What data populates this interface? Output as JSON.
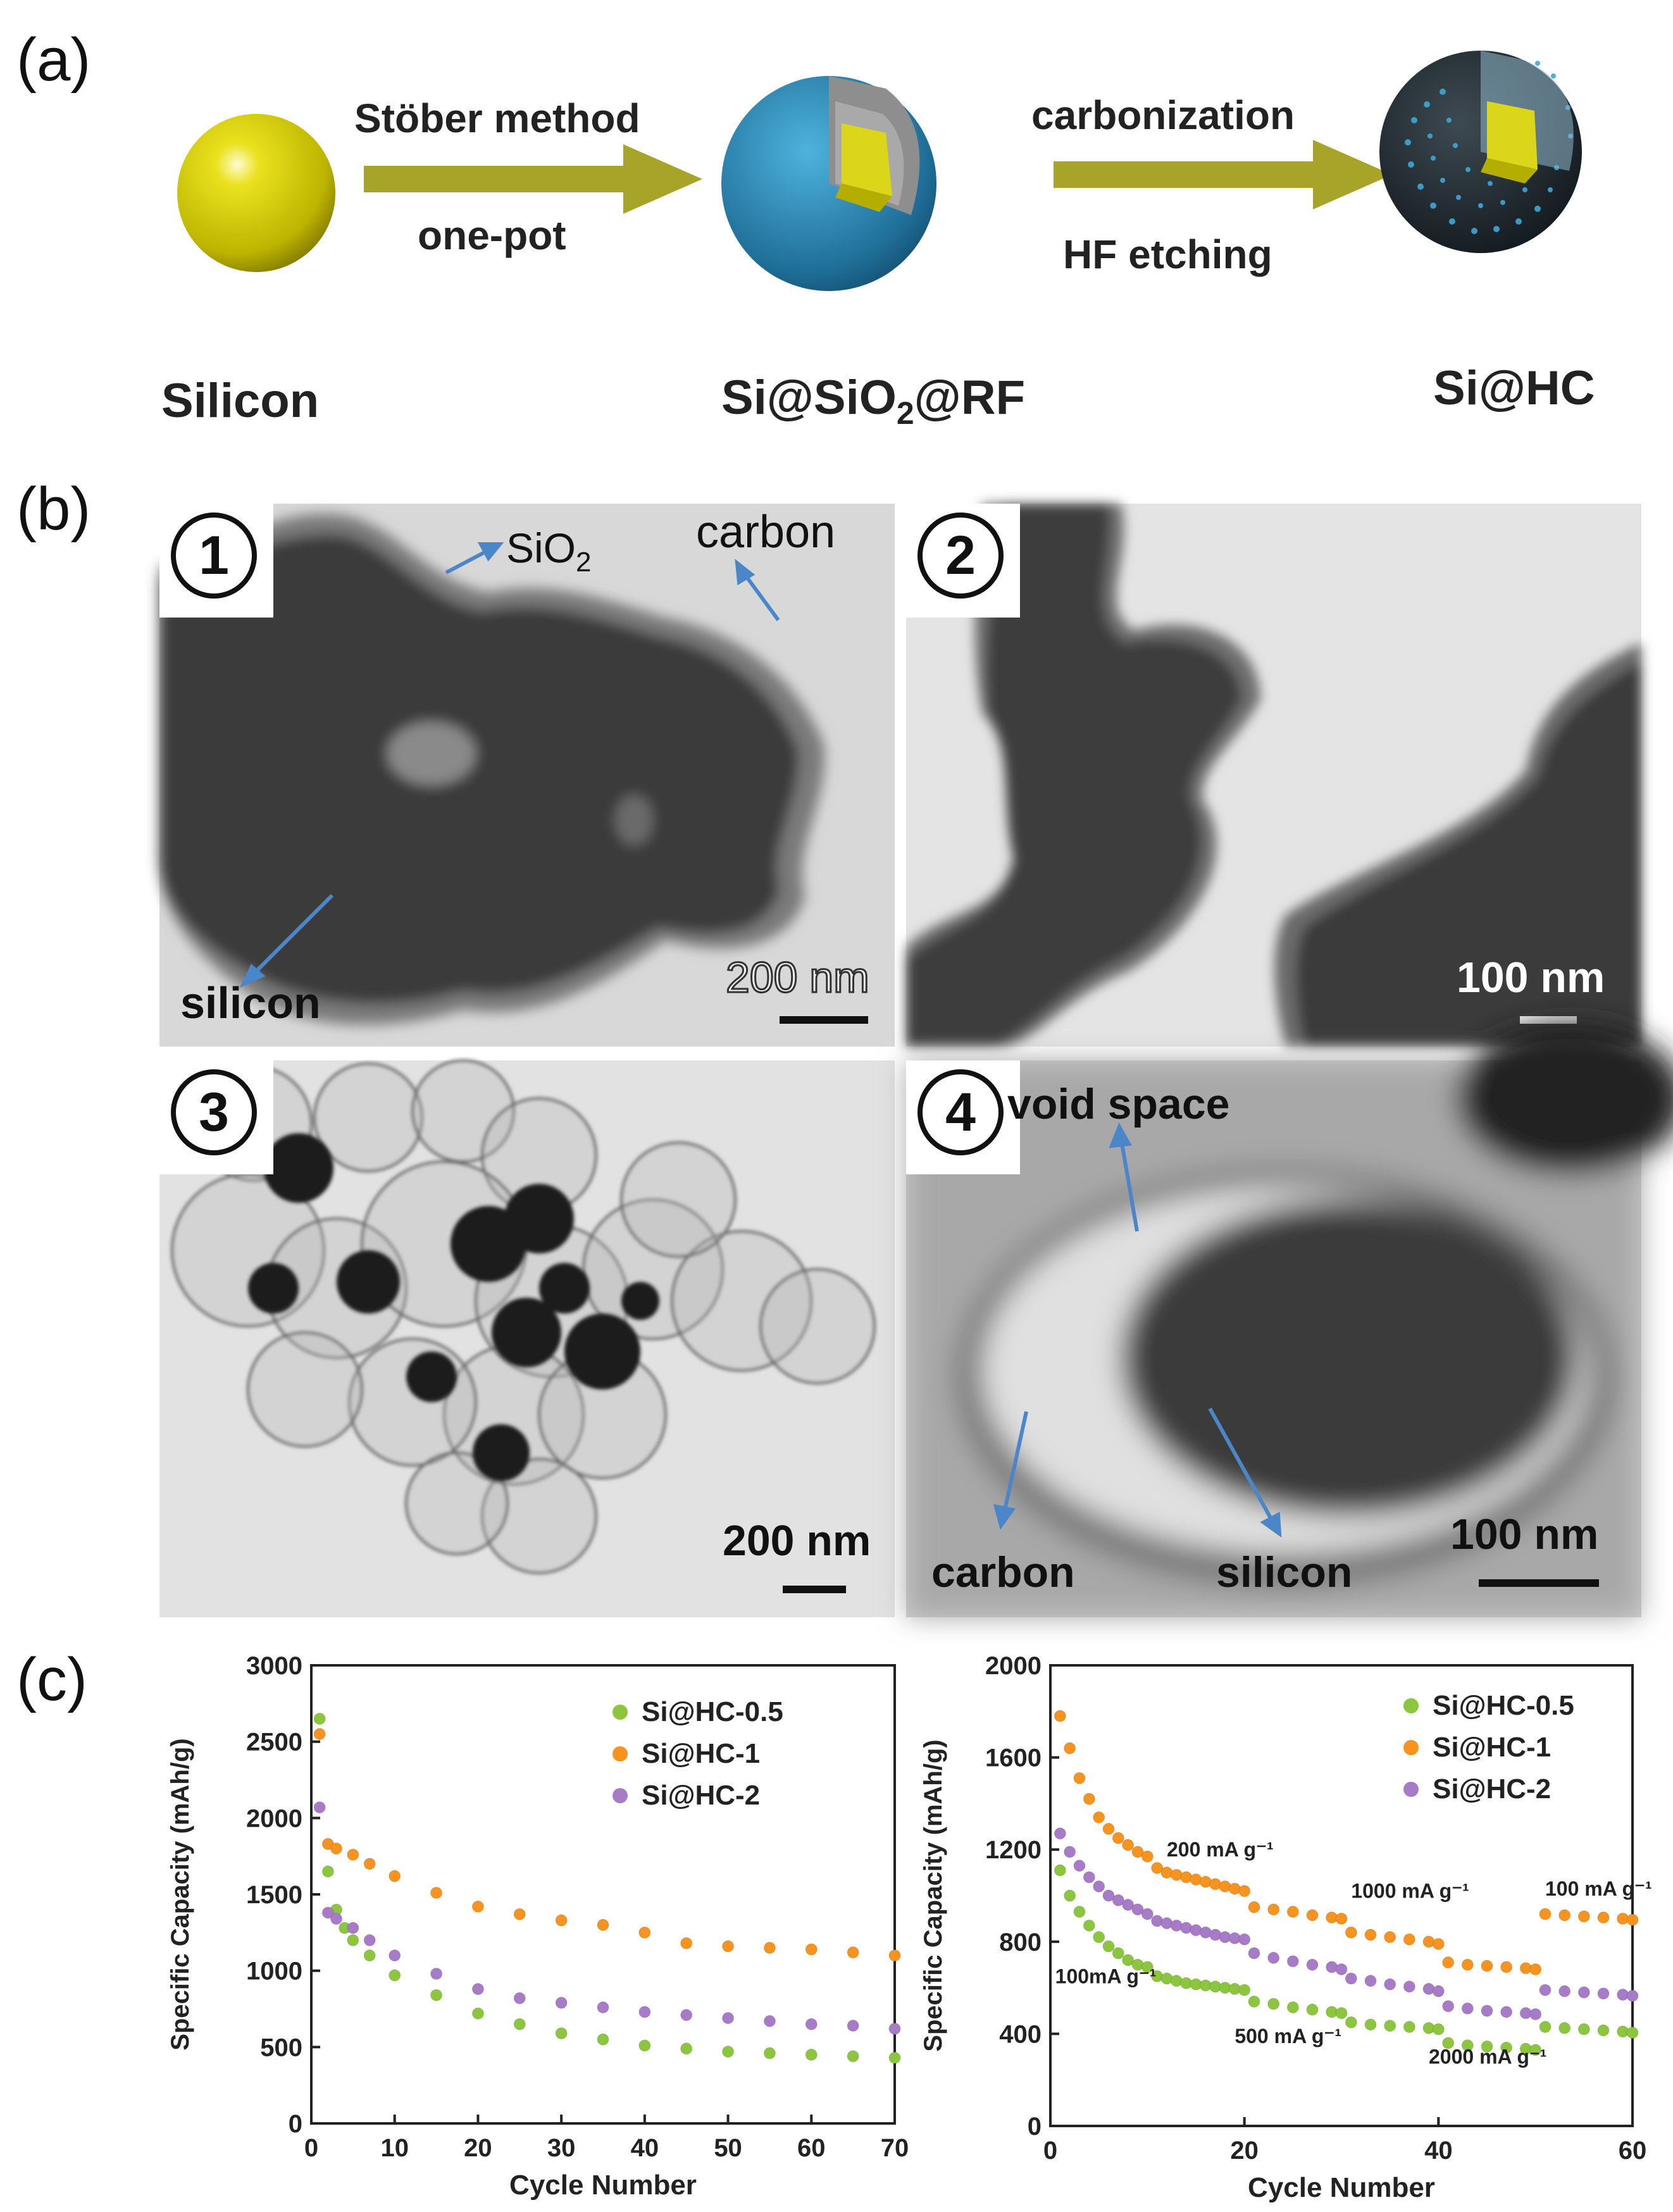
{
  "panel_a": {
    "letter": "(a)",
    "step1_top": "Stöber method",
    "step1_bottom": "one-pot",
    "step2_top": "carbonization",
    "step2_bottom": "HF etching",
    "label_silicon": "Silicon",
    "label_mid_a": "Si@SiO",
    "label_mid_sub": "2",
    "label_mid_b": "@RF",
    "label_final": "Si@HC",
    "colors": {
      "arrow": "#a8a42a",
      "sphere": "#d8d210",
      "shell": "#2b7fa6",
      "dark_shell": "#1c2830"
    }
  },
  "panel_b": {
    "letter": "(b)",
    "img1": {
      "badge": "1",
      "ann_sio2_a": "SiO",
      "ann_sio2_sub": "2",
      "ann_carbon": "carbon",
      "ann_silicon": "silicon",
      "scale": "200 nm"
    },
    "img2": {
      "badge": "2",
      "scale": "100 nm"
    },
    "img3": {
      "badge": "3",
      "scale": "200 nm"
    },
    "img4": {
      "badge": "4",
      "ann_void": "void space",
      "ann_carbon": "carbon",
      "ann_silicon": "silicon",
      "scale": "100 nm"
    },
    "arrow_color": "#4a86c8"
  },
  "panel_c": {
    "letter": "(c)",
    "colors": {
      "Si@HC-0.5": "#8cc63f",
      "Si@HC-1": "#f7931e",
      "Si@HC-2": "#a87bc8"
    }
  },
  "chart_data": [
    {
      "type": "scatter",
      "xlabel": "Cycle Number",
      "ylabel": "Specific Capacity (mAh/g)",
      "xlim": [
        0,
        70
      ],
      "ylim": [
        0,
        3000
      ],
      "xticks": [
        0,
        10,
        20,
        30,
        40,
        50,
        60,
        70
      ],
      "yticks": [
        0,
        500,
        1000,
        1500,
        2000,
        2500,
        3000
      ],
      "legend": "top-right",
      "series": [
        {
          "name": "Si@HC-0.5",
          "points": [
            [
              1,
              2650
            ],
            [
              2,
              1650
            ],
            [
              3,
              1400
            ],
            [
              4,
              1280
            ],
            [
              5,
              1200
            ],
            [
              7,
              1100
            ],
            [
              10,
              970
            ],
            [
              15,
              840
            ],
            [
              20,
              720
            ],
            [
              25,
              650
            ],
            [
              30,
              590
            ],
            [
              35,
              550
            ],
            [
              40,
              510
            ],
            [
              45,
              490
            ],
            [
              50,
              470
            ],
            [
              55,
              460
            ],
            [
              60,
              450
            ],
            [
              65,
              440
            ],
            [
              70,
              430
            ]
          ]
        },
        {
          "name": "Si@HC-1",
          "points": [
            [
              1,
              2550
            ],
            [
              2,
              1830
            ],
            [
              3,
              1800
            ],
            [
              5,
              1760
            ],
            [
              7,
              1700
            ],
            [
              10,
              1620
            ],
            [
              15,
              1510
            ],
            [
              20,
              1420
            ],
            [
              25,
              1370
            ],
            [
              30,
              1330
            ],
            [
              35,
              1300
            ],
            [
              40,
              1250
            ],
            [
              45,
              1180
            ],
            [
              50,
              1160
            ],
            [
              55,
              1150
            ],
            [
              60,
              1140
            ],
            [
              65,
              1120
            ],
            [
              70,
              1100
            ]
          ]
        },
        {
          "name": "Si@HC-2",
          "points": [
            [
              1,
              2070
            ],
            [
              2,
              1380
            ],
            [
              3,
              1340
            ],
            [
              5,
              1280
            ],
            [
              7,
              1200
            ],
            [
              10,
              1100
            ],
            [
              15,
              980
            ],
            [
              20,
              880
            ],
            [
              25,
              820
            ],
            [
              30,
              790
            ],
            [
              35,
              760
            ],
            [
              40,
              730
            ],
            [
              45,
              710
            ],
            [
              50,
              690
            ],
            [
              55,
              670
            ],
            [
              60,
              650
            ],
            [
              65,
              640
            ],
            [
              70,
              620
            ]
          ]
        }
      ]
    },
    {
      "type": "scatter",
      "xlabel": "Cycle Number",
      "ylabel": "Specific Capacity (mAh/g)",
      "xlim": [
        0,
        60
      ],
      "ylim": [
        0,
        2000
      ],
      "xticks": [
        0,
        20,
        40,
        60
      ],
      "yticks": [
        0,
        400,
        800,
        1200,
        1600,
        2000
      ],
      "legend": "top-right",
      "annotations": [
        "100mA g⁻¹",
        "200 mA g⁻¹",
        "500 mA g⁻¹",
        "1000 mA g⁻¹",
        "2000 mA g⁻¹",
        "100 mA g⁻¹"
      ],
      "series": [
        {
          "name": "Si@HC-0.5",
          "points": [
            [
              1,
              1110
            ],
            [
              2,
              1000
            ],
            [
              3,
              930
            ],
            [
              4,
              870
            ],
            [
              5,
              820
            ],
            [
              6,
              780
            ],
            [
              7,
              750
            ],
            [
              8,
              720
            ],
            [
              9,
              700
            ],
            [
              10,
              690
            ],
            [
              11,
              650
            ],
            [
              12,
              640
            ],
            [
              13,
              630
            ],
            [
              14,
              620
            ],
            [
              15,
              615
            ],
            [
              16,
              610
            ],
            [
              17,
              605
            ],
            [
              18,
              600
            ],
            [
              19,
              595
            ],
            [
              20,
              590
            ],
            [
              21,
              540
            ],
            [
              23,
              530
            ],
            [
              25,
              515
            ],
            [
              27,
              505
            ],
            [
              29,
              495
            ],
            [
              30,
              490
            ],
            [
              31,
              450
            ],
            [
              33,
              440
            ],
            [
              35,
              435
            ],
            [
              37,
              430
            ],
            [
              39,
              425
            ],
            [
              40,
              420
            ],
            [
              41,
              360
            ],
            [
              43,
              350
            ],
            [
              45,
              345
            ],
            [
              47,
              340
            ],
            [
              49,
              335
            ],
            [
              50,
              330
            ],
            [
              51,
              430
            ],
            [
              53,
              425
            ],
            [
              55,
              420
            ],
            [
              57,
              415
            ],
            [
              59,
              410
            ],
            [
              60,
              405
            ]
          ]
        },
        {
          "name": "Si@HC-1",
          "points": [
            [
              1,
              1780
            ],
            [
              2,
              1640
            ],
            [
              3,
              1510
            ],
            [
              4,
              1420
            ],
            [
              5,
              1340
            ],
            [
              6,
              1290
            ],
            [
              7,
              1250
            ],
            [
              8,
              1220
            ],
            [
              9,
              1190
            ],
            [
              10,
              1170
            ],
            [
              11,
              1120
            ],
            [
              12,
              1100
            ],
            [
              13,
              1090
            ],
            [
              14,
              1080
            ],
            [
              15,
              1070
            ],
            [
              16,
              1060
            ],
            [
              17,
              1050
            ],
            [
              18,
              1040
            ],
            [
              19,
              1030
            ],
            [
              20,
              1020
            ],
            [
              21,
              950
            ],
            [
              23,
              940
            ],
            [
              25,
              930
            ],
            [
              27,
              915
            ],
            [
              29,
              905
            ],
            [
              30,
              900
            ],
            [
              31,
              840
            ],
            [
              33,
              830
            ],
            [
              35,
              820
            ],
            [
              37,
              810
            ],
            [
              39,
              800
            ],
            [
              40,
              790
            ],
            [
              41,
              710
            ],
            [
              43,
              700
            ],
            [
              45,
              695
            ],
            [
              47,
              690
            ],
            [
              49,
              685
            ],
            [
              50,
              680
            ],
            [
              51,
              920
            ],
            [
              53,
              915
            ],
            [
              55,
              910
            ],
            [
              57,
              905
            ],
            [
              59,
              900
            ],
            [
              60,
              895
            ]
          ]
        },
        {
          "name": "Si@HC-2",
          "points": [
            [
              1,
              1270
            ],
            [
              2,
              1190
            ],
            [
              3,
              1130
            ],
            [
              4,
              1080
            ],
            [
              5,
              1040
            ],
            [
              6,
              1000
            ],
            [
              7,
              980
            ],
            [
              8,
              960
            ],
            [
              9,
              940
            ],
            [
              10,
              920
            ],
            [
              11,
              890
            ],
            [
              12,
              880
            ],
            [
              13,
              870
            ],
            [
              14,
              860
            ],
            [
              15,
              850
            ],
            [
              16,
              840
            ],
            [
              17,
              830
            ],
            [
              18,
              820
            ],
            [
              19,
              815
            ],
            [
              20,
              810
            ],
            [
              21,
              750
            ],
            [
              23,
              730
            ],
            [
              25,
              715
            ],
            [
              27,
              700
            ],
            [
              29,
              690
            ],
            [
              30,
              680
            ],
            [
              31,
              640
            ],
            [
              33,
              630
            ],
            [
              35,
              615
            ],
            [
              37,
              605
            ],
            [
              39,
              595
            ],
            [
              40,
              585
            ],
            [
              41,
              520
            ],
            [
              43,
              510
            ],
            [
              45,
              500
            ],
            [
              47,
              495
            ],
            [
              49,
              490
            ],
            [
              50,
              485
            ],
            [
              51,
              590
            ],
            [
              53,
              585
            ],
            [
              55,
              580
            ],
            [
              57,
              575
            ],
            [
              59,
              570
            ],
            [
              60,
              565
            ]
          ]
        }
      ]
    }
  ]
}
